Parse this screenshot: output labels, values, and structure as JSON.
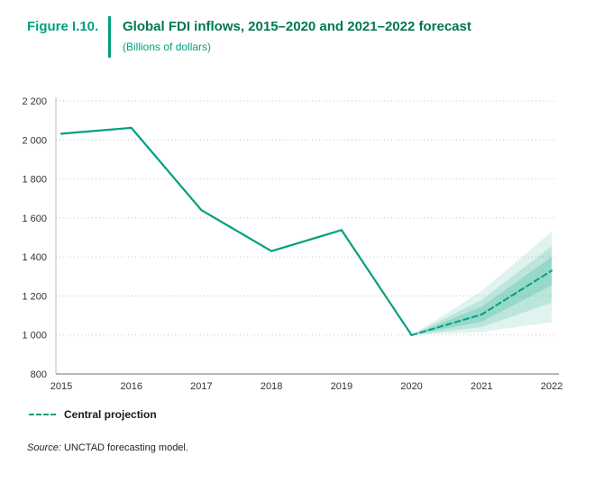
{
  "header": {
    "figure_label": "Figure I.10.",
    "title": "Global FDI inflows, 2015–2020 and 2021–2022 forecast",
    "subtitle": "(Billions of dollars)"
  },
  "legend": {
    "central_label": "Central projection"
  },
  "source": {
    "prefix": "Source:",
    "text": " UNCTAD forecasting model."
  },
  "colors": {
    "accent": "#00A07E",
    "title_green": "#00784E",
    "axis_text": "#333333",
    "gridline": "#c6c6c6",
    "axis_line": "#8c8c8c"
  },
  "chart_data": {
    "type": "line",
    "title": "Global FDI inflows, 2015–2020 and 2021–2022 forecast",
    "xlabel": "",
    "ylabel": "Billions of dollars",
    "ylim": [
      800,
      2200
    ],
    "grid": "dotted-horizontal",
    "legend_position": "bottom-left",
    "x": [
      2015,
      2016,
      2017,
      2018,
      2019,
      2020,
      2021,
      2022
    ],
    "xticklabels": [
      "2015",
      "2016",
      "2017",
      "2018",
      "2019",
      "2020",
      "2021",
      "2022"
    ],
    "yticks": [
      {
        "value": 800,
        "label": "800"
      },
      {
        "value": 1000,
        "label": "1 000"
      },
      {
        "value": 1200,
        "label": "1 200"
      },
      {
        "value": 1400,
        "label": "1 400"
      },
      {
        "value": 1600,
        "label": "1 600"
      },
      {
        "value": 1800,
        "label": "1 800"
      },
      {
        "value": 2000,
        "label": "2 000"
      },
      {
        "value": 2200,
        "label": "2 200"
      }
    ],
    "series": [
      {
        "name": "Global FDI inflows (actual)",
        "style": "solid",
        "points": [
          {
            "x": 2015,
            "y": 2032
          },
          {
            "x": 2016,
            "y": 2062
          },
          {
            "x": 2017,
            "y": 1640
          },
          {
            "x": 2018,
            "y": 1430
          },
          {
            "x": 2019,
            "y": 1538
          },
          {
            "x": 2020,
            "y": 999
          }
        ]
      },
      {
        "name": "Central projection",
        "style": "dashed",
        "points": [
          {
            "x": 2020,
            "y": 999
          },
          {
            "x": 2021,
            "y": 1105
          },
          {
            "x": 2022,
            "y": 1330
          }
        ]
      }
    ],
    "fan_bands": [
      {
        "name": "forecast-range-outer",
        "opacity": 0.12,
        "points": [
          {
            "x": 2020,
            "lower": 999,
            "upper": 999
          },
          {
            "x": 2021,
            "lower": 1015,
            "upper": 1225
          },
          {
            "x": 2022,
            "lower": 1065,
            "upper": 1530
          }
        ]
      },
      {
        "name": "forecast-range-middle",
        "opacity": 0.16,
        "points": [
          {
            "x": 2020,
            "lower": 999,
            "upper": 999
          },
          {
            "x": 2021,
            "lower": 1040,
            "upper": 1180
          },
          {
            "x": 2022,
            "lower": 1165,
            "upper": 1455
          }
        ]
      },
      {
        "name": "forecast-range-inner",
        "opacity": 0.2,
        "points": [
          {
            "x": 2020,
            "lower": 999,
            "upper": 999
          },
          {
            "x": 2021,
            "lower": 1068,
            "upper": 1145
          },
          {
            "x": 2022,
            "lower": 1255,
            "upper": 1400
          }
        ]
      }
    ]
  }
}
